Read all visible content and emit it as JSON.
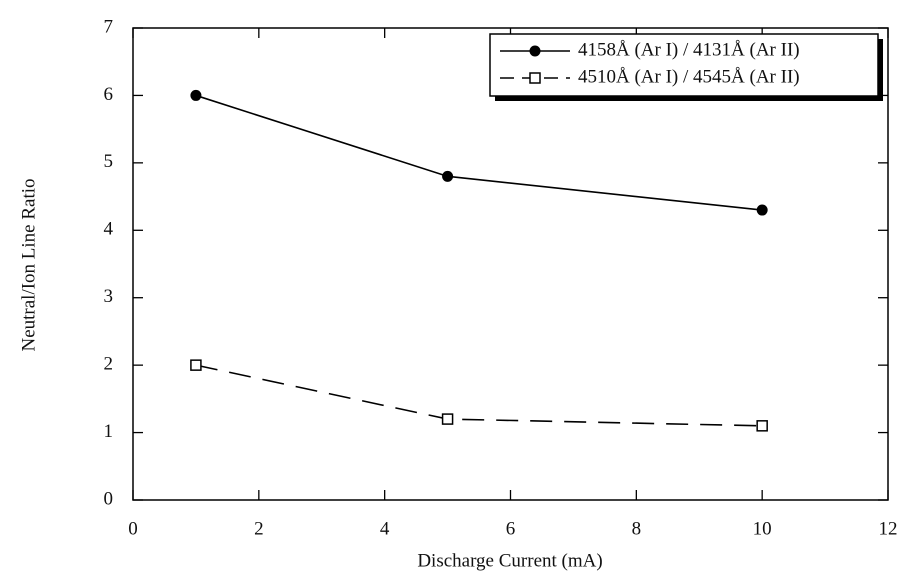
{
  "chart_data": {
    "type": "line",
    "x_label": "Discharge Current (mA)",
    "y_label": "Neutral/Ion Line Ratio",
    "xlim": [
      0,
      12
    ],
    "xticks": [
      0,
      2,
      4,
      6,
      8,
      10,
      12
    ],
    "ylim": [
      0,
      7
    ],
    "yticks": [
      0,
      1,
      2,
      3,
      4,
      5,
      6,
      7
    ],
    "legend": "upper right",
    "series": [
      {
        "name": "4158Å (Ar I) / 4131Å (Ar II)",
        "color": "#000000",
        "linestyle": "solid",
        "marker": "circle",
        "x": [
          1,
          5,
          10
        ],
        "values": [
          6.0,
          4.8,
          4.3
        ]
      },
      {
        "name": "4510Å (Ar I) / 4545Å (Ar II)",
        "color": "#000000",
        "linestyle": "dashed",
        "marker": "square",
        "x": [
          1,
          5,
          10
        ],
        "values": [
          2.0,
          1.2,
          1.1
        ]
      }
    ]
  }
}
